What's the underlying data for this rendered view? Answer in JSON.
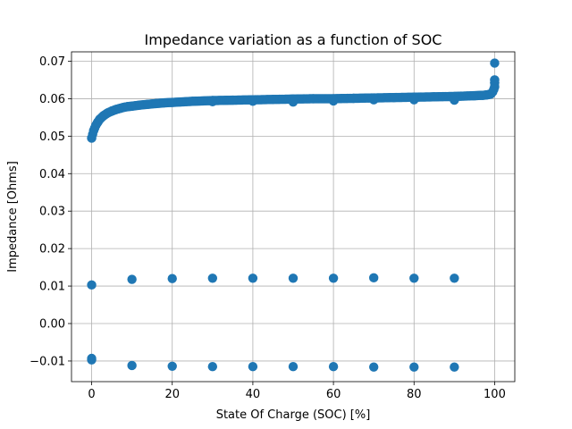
{
  "chart_data": {
    "type": "scatter",
    "title": "Impedance variation as a function of SOC",
    "xlabel": "State Of Charge (SOC) [%]",
    "ylabel": "Impedance [Ohms]",
    "xlim": [
      -5,
      105
    ],
    "ylim": [
      -0.0155,
      0.0725
    ],
    "xticks": [
      0,
      20,
      40,
      60,
      80,
      100
    ],
    "xtick_labels": [
      "0",
      "20",
      "40",
      "60",
      "80",
      "100"
    ],
    "yticks": [
      -0.01,
      0.0,
      0.01,
      0.02,
      0.03,
      0.04,
      0.05,
      0.06,
      0.07
    ],
    "ytick_labels": [
      "−0.01",
      "0.00",
      "0.01",
      "0.02",
      "0.03",
      "0.04",
      "0.05",
      "0.06",
      "0.07"
    ],
    "grid": true,
    "marker_color": "#1f77b4",
    "series": [
      {
        "points": {
          "x": [
            0,
            0.5,
            1,
            1.5,
            2,
            3,
            4,
            5,
            6,
            7,
            8,
            9,
            10,
            12,
            14,
            16,
            18,
            20,
            25,
            30,
            35,
            40,
            45,
            50,
            55,
            60,
            65,
            70,
            75,
            80,
            85,
            90,
            95,
            97,
            98,
            99,
            99.5,
            99.8,
            100,
            100,
            100,
            100
          ],
          "y": [
            0.0495,
            0.0515,
            0.0528,
            0.0537,
            0.0545,
            0.0555,
            0.0562,
            0.0567,
            0.0571,
            0.0574,
            0.0577,
            0.0579,
            0.058,
            0.0583,
            0.0585,
            0.0587,
            0.0589,
            0.059,
            0.0593,
            0.0595,
            0.0596,
            0.0597,
            0.0598,
            0.0599,
            0.06,
            0.06,
            0.0601,
            0.0602,
            0.0603,
            0.0604,
            0.0605,
            0.0606,
            0.0608,
            0.0609,
            0.061,
            0.0612,
            0.0618,
            0.0625,
            0.0632,
            0.0642,
            0.065,
            0.0695
          ]
        }
      },
      {
        "points": {
          "x": [
            0,
            10,
            20,
            30,
            40,
            50,
            60,
            70,
            80,
            90
          ],
          "y": [
            0.0103,
            0.0118,
            0.012,
            0.0121,
            0.0121,
            0.0121,
            0.0121,
            0.0122,
            0.0121,
            0.0121
          ]
        }
      },
      {
        "points": {
          "x": [
            0,
            0,
            10,
            20,
            30,
            40,
            50,
            60,
            70,
            80,
            90
          ],
          "y": [
            -0.0093,
            -0.0097,
            -0.0112,
            -0.0114,
            -0.0115,
            -0.0115,
            -0.0115,
            -0.0115,
            -0.0116,
            -0.0116,
            -0.0116
          ]
        }
      },
      {
        "points": {
          "x": [
            30,
            40,
            50,
            60,
            70,
            80,
            90
          ],
          "y": [
            0.0592,
            0.0593,
            0.0591,
            0.0594,
            0.0597,
            0.0597,
            0.0596
          ]
        }
      }
    ]
  }
}
